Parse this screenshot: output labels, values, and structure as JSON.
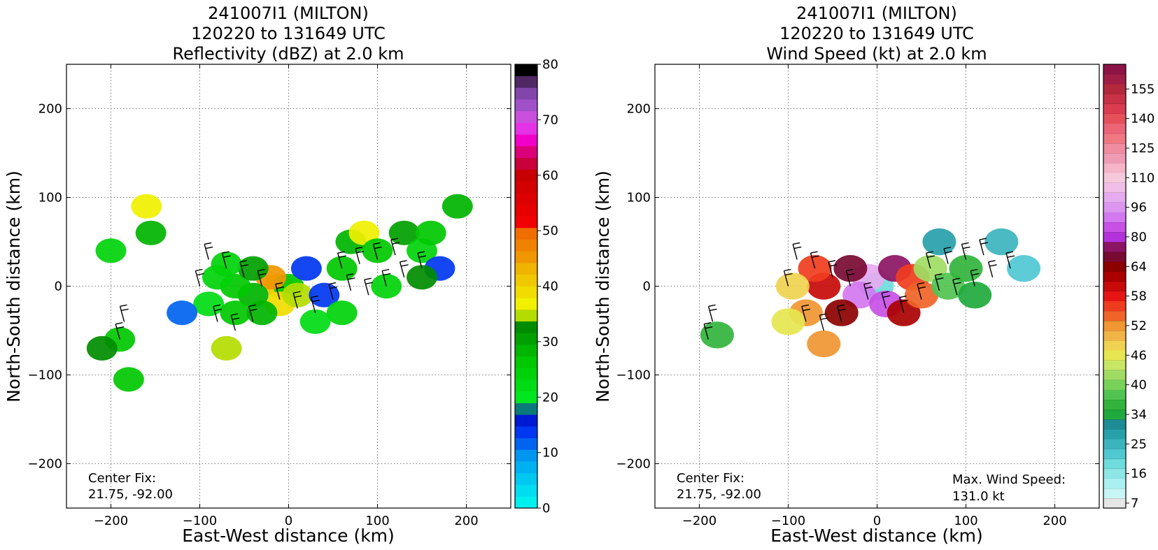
{
  "panels": [
    {
      "id": "reflectivity",
      "title_lines": [
        "241007I1 (MILTON)",
        "120220 to 131649 UTC",
        "Reflectivity (dBZ) at 2.0 km"
      ],
      "center_fix_label": "Center Fix:",
      "center_fix_value": "21.75, -92.00",
      "colorbar": {
        "min": 0,
        "max": 80,
        "tick_labels": [
          "0",
          "10",
          "20",
          "30",
          "40",
          "50",
          "60",
          "70",
          "80"
        ],
        "tick_values": [
          0,
          10,
          20,
          30,
          40,
          50,
          60,
          70,
          80
        ],
        "colors": [
          "#00f0f0",
          "#00dcf0",
          "#00c8f0",
          "#00b0f0",
          "#0096f0",
          "#0064f0",
          "#0037f0",
          "#0019d2",
          "#0a7a7a",
          "#00e61e",
          "#00dc14",
          "#00d20a",
          "#00c800",
          "#00b400",
          "#00a000",
          "#008c00",
          "#b4dc00",
          "#f0f000",
          "#f0dc00",
          "#f0c800",
          "#f0b400",
          "#f09600",
          "#f08200",
          "#f06e00",
          "#f00000",
          "#e60000",
          "#dc0000",
          "#d20000",
          "#c80000",
          "#c8003c",
          "#dc0078",
          "#f000c8",
          "#e632e6",
          "#c850dc",
          "#a050c8",
          "#8246aa",
          "#502864",
          "#000000"
        ]
      }
    },
    {
      "id": "windspeed",
      "title_lines": [
        "241007I1 (MILTON)",
        "120220 to 131649 UTC",
        "Wind Speed (kt) at 2.0 km"
      ],
      "center_fix_label": "Center Fix:",
      "center_fix_value": "21.75, -92.00",
      "max_wind_label": "Max. Wind Speed:",
      "max_wind_value": "131.0 kt",
      "colorbar": {
        "tick_labels": [
          "7",
          "16",
          "25",
          "34",
          "40",
          "46",
          "52",
          "58",
          "64",
          "80",
          "96",
          "110",
          "125",
          "140",
          "155"
        ],
        "colors": [
          "#e6e6e6",
          "#c8f5f5",
          "#aaf0f0",
          "#8ce6e6",
          "#6edcdc",
          "#50c8d2",
          "#3cb4be",
          "#28a0aa",
          "#1e8c96",
          "#1eaa3c",
          "#32b43c",
          "#50c350",
          "#78d25a",
          "#a0dc64",
          "#c8e664",
          "#e6e650",
          "#f0d250",
          "#f0b446",
          "#f09632",
          "#f06428",
          "#f03c1e",
          "#e61414",
          "#c80a0a",
          "#aa0000",
          "#8c0000",
          "#780a32",
          "#8c1464",
          "#b432dc",
          "#c850e6",
          "#d278f0",
          "#dc96f0",
          "#e6aaf0",
          "#f0bee6",
          "#f5c8dc",
          "#f5b4c8",
          "#f09bb4",
          "#f08ca0",
          "#f07882",
          "#eb6478",
          "#e6505a",
          "#dc3c50",
          "#c83246",
          "#b4283c",
          "#a01e46",
          "#8c1446"
        ]
      }
    }
  ],
  "shared": {
    "xlabel": "East-West distance (km)",
    "ylabel": "North-South distance (km)",
    "x_ticks": [
      "−200",
      "−100",
      "0",
      "100",
      "200"
    ],
    "y_ticks": [
      "200",
      "100",
      "0",
      "−100",
      "−200"
    ],
    "x_tick_values": [
      -200,
      -100,
      0,
      100,
      200
    ],
    "y_tick_values": [
      200,
      100,
      0,
      -100,
      -200
    ],
    "xlim": [
      -250,
      250
    ],
    "ylim": [
      -250,
      250
    ]
  },
  "chart_data": [
    {
      "type": "heatmap",
      "title": "241007I1 (MILTON) 120220 to 131649 UTC Reflectivity (dBZ) at 2.0 km",
      "xlabel": "East-West distance (km)",
      "ylabel": "North-South distance (km)",
      "xlim": [
        -250,
        250
      ],
      "ylim": [
        -250,
        250
      ],
      "grid": true,
      "colorbar_range": [
        0,
        80
      ],
      "cells": [
        {
          "x": -10,
          "y": 0,
          "v": 40
        },
        {
          "x": 0,
          "y": 0,
          "v": 25
        },
        {
          "x": -20,
          "y": 10,
          "v": 45
        },
        {
          "x": -10,
          "y": -20,
          "v": 38
        },
        {
          "x": 10,
          "y": -10,
          "v": 35
        },
        {
          "x": -40,
          "y": -10,
          "v": 28
        },
        {
          "x": -60,
          "y": 0,
          "v": 26
        },
        {
          "x": -80,
          "y": 10,
          "v": 24
        },
        {
          "x": -90,
          "y": -20,
          "v": 22
        },
        {
          "x": -60,
          "y": -30,
          "v": 25
        },
        {
          "x": -30,
          "y": -30,
          "v": 28
        },
        {
          "x": -40,
          "y": 20,
          "v": 30
        },
        {
          "x": -70,
          "y": 25,
          "v": 24
        },
        {
          "x": 20,
          "y": 20,
          "v": 12
        },
        {
          "x": 40,
          "y": -10,
          "v": 14
        },
        {
          "x": 60,
          "y": 20,
          "v": 26
        },
        {
          "x": 70,
          "y": 50,
          "v": 28
        },
        {
          "x": 85,
          "y": 60,
          "v": 36
        },
        {
          "x": 100,
          "y": 40,
          "v": 26
        },
        {
          "x": 110,
          "y": 0,
          "v": 24
        },
        {
          "x": 130,
          "y": 60,
          "v": 30
        },
        {
          "x": 150,
          "y": 40,
          "v": 24
        },
        {
          "x": 160,
          "y": 60,
          "v": 26
        },
        {
          "x": 170,
          "y": 20,
          "v": 12
        },
        {
          "x": 190,
          "y": 90,
          "v": 28
        },
        {
          "x": 150,
          "y": 10,
          "v": 32
        },
        {
          "x": 60,
          "y": -30,
          "v": 24
        },
        {
          "x": 30,
          "y": -40,
          "v": 22
        },
        {
          "x": -160,
          "y": 90,
          "v": 36
        },
        {
          "x": -155,
          "y": 60,
          "v": 28
        },
        {
          "x": -200,
          "y": 40,
          "v": 24
        },
        {
          "x": -190,
          "y": -60,
          "v": 26
        },
        {
          "x": -210,
          "y": -70,
          "v": 32
        },
        {
          "x": -180,
          "y": -105,
          "v": 26
        },
        {
          "x": -70,
          "y": -70,
          "v": 34
        },
        {
          "x": -120,
          "y": -30,
          "v": 10
        }
      ]
    },
    {
      "type": "heatmap",
      "title": "241007I1 (MILTON) 120220 to 131649 UTC Wind Speed (kt) at 2.0 km",
      "xlabel": "East-West distance (km)",
      "ylabel": "North-South distance (km)",
      "xlim": [
        -250,
        250
      ],
      "ylim": [
        -250,
        250
      ],
      "grid": true,
      "max_wind_speed_kt": 131.0,
      "cells": [
        {
          "x": 0,
          "y": 0,
          "v": 20
        },
        {
          "x": -10,
          "y": 10,
          "v": 100
        },
        {
          "x": -20,
          "y": -10,
          "v": 90
        },
        {
          "x": 10,
          "y": -20,
          "v": 85
        },
        {
          "x": 20,
          "y": 20,
          "v": 75
        },
        {
          "x": -30,
          "y": 20,
          "v": 70
        },
        {
          "x": -40,
          "y": -30,
          "v": 66
        },
        {
          "x": 30,
          "y": -30,
          "v": 62
        },
        {
          "x": -60,
          "y": 0,
          "v": 60
        },
        {
          "x": -70,
          "y": 20,
          "v": 56
        },
        {
          "x": -80,
          "y": -30,
          "v": 52
        },
        {
          "x": -95,
          "y": 0,
          "v": 48
        },
        {
          "x": 40,
          "y": 10,
          "v": 56
        },
        {
          "x": 50,
          "y": -10,
          "v": 54
        },
        {
          "x": 60,
          "y": 20,
          "v": 42
        },
        {
          "x": 80,
          "y": 0,
          "v": 38
        },
        {
          "x": 100,
          "y": 20,
          "v": 36
        },
        {
          "x": 110,
          "y": -10,
          "v": 34
        },
        {
          "x": 70,
          "y": 50,
          "v": 30
        },
        {
          "x": 140,
          "y": 50,
          "v": 26
        },
        {
          "x": 165,
          "y": 20,
          "v": 24
        },
        {
          "x": -180,
          "y": -55,
          "v": 36
        },
        {
          "x": -60,
          "y": -65,
          "v": 52
        },
        {
          "x": -100,
          "y": -40,
          "v": 46
        }
      ]
    }
  ]
}
